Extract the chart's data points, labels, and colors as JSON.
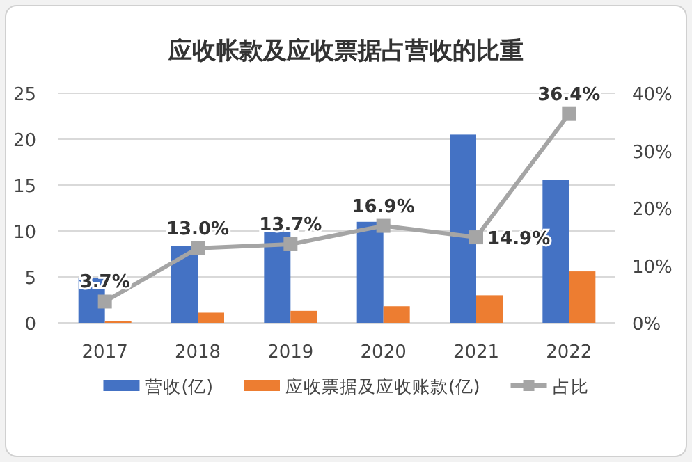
{
  "chart_data": {
    "type": "bar",
    "title": "应收帐款及应收票据占营收的比重",
    "categories": [
      "2017",
      "2018",
      "2019",
      "2020",
      "2021",
      "2022"
    ],
    "series": [
      {
        "name": "营收(亿)",
        "color": "#4472c4",
        "values": [
          4.9,
          8.4,
          9.9,
          11.0,
          20.5,
          15.6
        ]
      },
      {
        "name": "应收票据及应收账款(亿)",
        "color": "#ed7d31",
        "values": [
          0.2,
          1.1,
          1.3,
          1.8,
          3.0,
          5.6
        ]
      },
      {
        "name": "占比",
        "type": "line",
        "axis": "y2",
        "color": "#a5a5a5",
        "marker": "square",
        "values": [
          3.7,
          13.0,
          13.7,
          16.9,
          14.9,
          36.4
        ],
        "value_labels": [
          "3.7%",
          "13.0%",
          "13.7%",
          "16.9%",
          "14.9%",
          "36.4%"
        ]
      }
    ],
    "ylim": [
      0,
      25
    ],
    "yticks": [
      0,
      5,
      10,
      15,
      20,
      25
    ],
    "y2lim": [
      0,
      40
    ],
    "y2ticks": [
      {
        "value": 0,
        "label": "0%"
      },
      {
        "value": 10,
        "label": "10%"
      },
      {
        "value": 20,
        "label": "20%"
      },
      {
        "value": 30,
        "label": "30%"
      },
      {
        "value": 40,
        "label": "40%"
      }
    ],
    "grid": "y",
    "legend": "bottom"
  }
}
